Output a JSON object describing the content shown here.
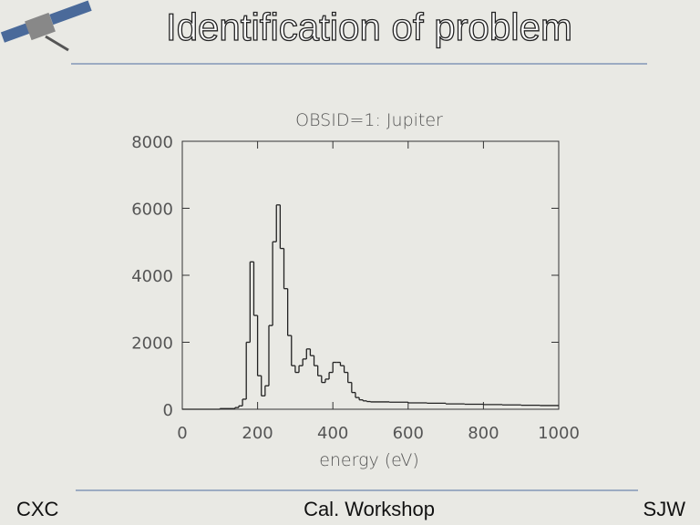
{
  "slide": {
    "title": "Identification of problem",
    "footer_left": "CXC",
    "footer_center": "Cal. Workshop",
    "footer_right": "SJW"
  },
  "chart_data": {
    "type": "histogram",
    "title": "OBSID=1: Jupiter",
    "x_label": "energy (eV)",
    "bins": [
      0,
      100,
      140,
      150,
      160,
      170,
      180,
      190,
      200,
      210,
      220,
      230,
      240,
      250,
      260,
      270,
      280,
      290,
      300,
      310,
      320,
      330,
      340,
      350,
      360,
      370,
      380,
      390,
      400,
      410,
      420,
      430,
      440,
      450,
      460,
      470,
      480,
      490,
      500,
      550,
      600,
      650,
      700,
      750,
      800,
      850,
      900,
      950,
      1000
    ],
    "counts": [
      0,
      20,
      50,
      100,
      300,
      2000,
      4400,
      2800,
      1000,
      400,
      700,
      2500,
      5000,
      6100,
      4800,
      3600,
      2200,
      1300,
      1100,
      1300,
      1500,
      1800,
      1600,
      1300,
      1000,
      800,
      900,
      1100,
      1400,
      1400,
      1300,
      1100,
      800,
      500,
      350,
      280,
      250,
      230,
      220,
      210,
      190,
      180,
      160,
      150,
      140,
      130,
      120,
      110
    ],
    "color": "#222222",
    "xlim": [
      0,
      1000
    ],
    "xticks": [
      0,
      200,
      400,
      600,
      800,
      1000
    ],
    "ylim": [
      0,
      8000
    ],
    "yticks": [
      0,
      2000,
      4000,
      6000,
      8000
    ]
  }
}
